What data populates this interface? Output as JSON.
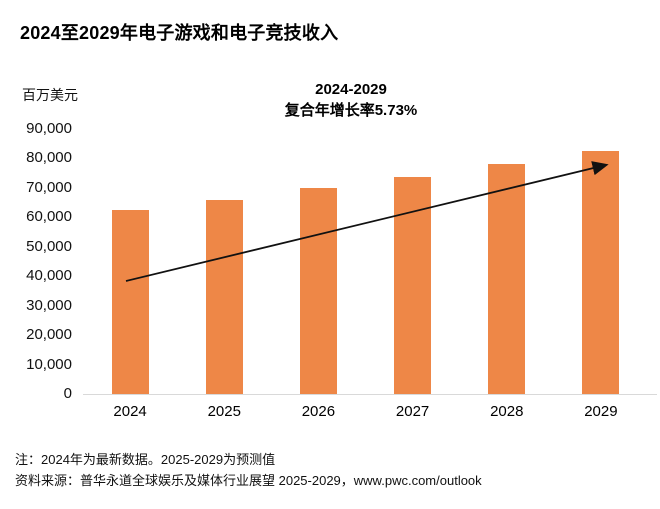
{
  "page": {
    "title": "2024至2029年电子游戏和电子竞技收入"
  },
  "chart": {
    "unit_label": "百万美元",
    "annotation": {
      "line1": "2024-2029",
      "line2": "复合年增长率5.73%"
    },
    "bar_color": "#EE8747",
    "axis_line_color": "#D9D9D9",
    "arrow_color": "#111111"
  },
  "chart_data": {
    "type": "bar",
    "title": "2024至2029年电子游戏和电子竞技收入",
    "subtitle": "2024-2029 复合年增长率5.73%",
    "categories": [
      "2024",
      "2025",
      "2026",
      "2027",
      "2028",
      "2029"
    ],
    "values": [
      62500,
      66000,
      69800,
      73800,
      78000,
      82600
    ],
    "xlabel": "",
    "ylabel": "百万美元",
    "ylim": [
      0,
      90000
    ],
    "ytick_step": 10000,
    "grid": false,
    "legend_position": "none",
    "annotations": [
      "trend-arrow from 2024 bar to 2029 bar top"
    ]
  },
  "footer": {
    "note": "注：2024年为最新数据。2025-2029为预测值",
    "source": "资料来源：普华永道全球娱乐及媒体行业展望 2025-2029，www.pwc.com/outlook"
  }
}
